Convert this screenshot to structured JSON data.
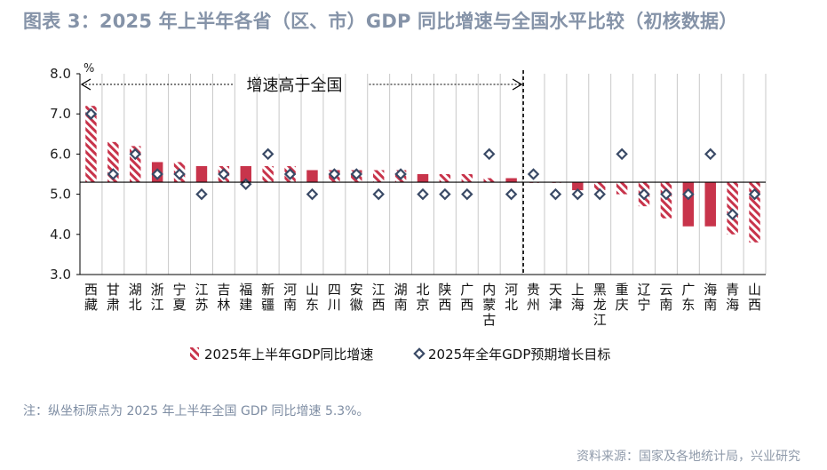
{
  "title": "图表 3：2025 年上半年各省（区、市）GDP 同比增速与全国水平比较（初核数据）",
  "note": "注：纵坐标原点为 2025 年上半年全国 GDP 同比增速 5.3%。",
  "source": "资料来源：国家及各地统计局，兴业研究",
  "chart_data": {
    "type": "bar",
    "y_unit": "%",
    "ylim": [
      3.0,
      8.0
    ],
    "y_ticks": [
      "3.0",
      "4.0",
      "5.0",
      "6.0",
      "7.0",
      "8.0"
    ],
    "baseline": 5.3,
    "vertical_grid": true,
    "annotation": "增速高于全国",
    "categories": [
      "西藏",
      "甘肃",
      "湖北",
      "浙江",
      "宁夏",
      "江苏",
      "吉林",
      "福建",
      "新疆",
      "河南",
      "山东",
      "四川",
      "安徽",
      "江西",
      "湖南",
      "北京",
      "陕西",
      "广西",
      "内蒙古",
      "河北",
      "贵州",
      "天津",
      "上海",
      "黑龙江",
      "重庆",
      "辽宁",
      "云南",
      "广东",
      "海南",
      "青海",
      "山西"
    ],
    "series": [
      {
        "name": "2025年上半年GDP同比增速",
        "values": [
          7.2,
          6.3,
          6.2,
          5.8,
          5.8,
          5.7,
          5.7,
          5.7,
          5.7,
          5.7,
          5.6,
          5.6,
          5.6,
          5.6,
          5.6,
          5.5,
          5.5,
          5.5,
          5.4,
          5.4,
          5.3,
          5.3,
          5.1,
          5.1,
          5.0,
          4.7,
          4.4,
          4.2,
          4.2,
          4.0,
          3.8
        ],
        "styles": [
          "hatched",
          "hatched",
          "hatched",
          "solid",
          "hatched",
          "solid",
          "hatched",
          "solid",
          "hatched",
          "hatched",
          "solid",
          "hatched",
          "hatched",
          "hatched",
          "hatched",
          "solid",
          "hatched",
          "hatched",
          "hatched",
          "solid",
          "hatched",
          "hatched",
          "solid",
          "hatched",
          "hatched",
          "hatched",
          "hatched",
          "solid",
          "solid",
          "hatched",
          "hatched"
        ]
      },
      {
        "name": "2025年全年GDP预期增长目标",
        "values": [
          7.0,
          5.5,
          6.0,
          5.5,
          5.5,
          5.0,
          5.5,
          5.25,
          6.0,
          5.5,
          5.0,
          5.5,
          5.5,
          5.0,
          5.5,
          5.0,
          5.0,
          5.0,
          6.0,
          5.0,
          5.5,
          5.0,
          5.0,
          5.0,
          6.0,
          5.0,
          5.0,
          5.0,
          6.0,
          4.5,
          5.0
        ]
      }
    ],
    "colors": {
      "bar": "#c8344b",
      "marker_fill": "#ffffff",
      "marker_stroke": "#3a4a66",
      "title": "#8593a8"
    }
  }
}
